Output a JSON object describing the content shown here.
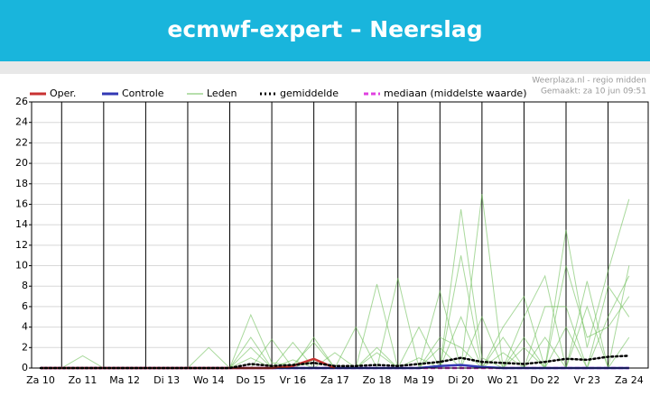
{
  "chart_data": {
    "type": "line",
    "title": "ecmwf-expert – Neerslag",
    "source": "Weerplaza.nl - regio midden",
    "note": "Gemaakt: za 10 jun 09:51",
    "categories": [
      "Za 10",
      null,
      "Zo 11",
      null,
      "Ma 12",
      null,
      "Di 13",
      null,
      "Wo 14",
      null,
      "Do 15",
      null,
      "Vr 16",
      null,
      "Za 17",
      null,
      "Zo 18",
      null,
      "Ma 19",
      null,
      "Di 20",
      null,
      "Wo 21",
      null,
      "Do 22",
      null,
      "Vr 23",
      null,
      "Za 24"
    ],
    "ylim": [
      0,
      26
    ],
    "yticks": [
      0,
      2,
      4,
      6,
      8,
      10,
      12,
      14,
      16,
      18,
      20,
      22,
      24,
      26
    ],
    "grid": true,
    "series": [
      {
        "name": "Oper.",
        "color": "#c83232",
        "values": [
          0,
          0,
          0,
          0,
          0,
          0,
          0,
          0,
          0,
          0,
          0,
          0,
          0.2,
          0.9,
          0,
          null,
          null,
          null,
          null,
          null,
          null,
          null,
          null,
          null,
          null,
          null,
          null,
          null,
          null
        ]
      },
      {
        "name": "Controle",
        "color": "#3238b4",
        "values": [
          0,
          0,
          0,
          0,
          0,
          0,
          0,
          0,
          0,
          0,
          0,
          0,
          0,
          0,
          0,
          0,
          0,
          0,
          0,
          0.2,
          0.3,
          0.1,
          0,
          0,
          0,
          0,
          0,
          0,
          0
        ]
      },
      {
        "name": "Leden",
        "color": "#6fbf5a",
        "members": [
          [
            0,
            0,
            0,
            0,
            0,
            0,
            0,
            0,
            0,
            0,
            5.2,
            0.5,
            0.3,
            2.5,
            0,
            0,
            8.2,
            0,
            0,
            0,
            15.5,
            1,
            0,
            3,
            0,
            13.5,
            2,
            9.5,
            16.5
          ],
          [
            0,
            0,
            1.2,
            0,
            0,
            0,
            0,
            0,
            0,
            0,
            3,
            0,
            0.8,
            0,
            0,
            0,
            0,
            8.8,
            0,
            2,
            0,
            17,
            0,
            5,
            9,
            0,
            6,
            0,
            10
          ],
          [
            0,
            0,
            0,
            0,
            0,
            0,
            0,
            0,
            2,
            0,
            0,
            2.8,
            0,
            0,
            1.5,
            0,
            0,
            0,
            4,
            0,
            11,
            0,
            1.5,
            0,
            6,
            6,
            0,
            8,
            5
          ],
          [
            0,
            0,
            0,
            0,
            0,
            0,
            0,
            0,
            0,
            0,
            2,
            0,
            0,
            0.8,
            0,
            0,
            2,
            0,
            0,
            7.5,
            0,
            5,
            0,
            2,
            0,
            10,
            3,
            4,
            7
          ],
          [
            0,
            0,
            0,
            0,
            0,
            0,
            0,
            0,
            0,
            0,
            0,
            0,
            2.5,
            0,
            0,
            4,
            0,
            0,
            1,
            0,
            5,
            0,
            3,
            0,
            3,
            0,
            8.5,
            0,
            3
          ],
          [
            0,
            0,
            0,
            0,
            0,
            0,
            0,
            0,
            0,
            0,
            1,
            0,
            0,
            3,
            0,
            0,
            1.5,
            0,
            0,
            3,
            2,
            0,
            4,
            7,
            0,
            4,
            0,
            5,
            9
          ]
        ]
      },
      {
        "name": "gemiddelde",
        "color": "#000000",
        "style": "dotted",
        "values": [
          0,
          0,
          0,
          0,
          0,
          0,
          0,
          0,
          0,
          0,
          0.4,
          0.2,
          0.3,
          0.5,
          0.2,
          0.2,
          0.3,
          0.2,
          0.4,
          0.6,
          1.0,
          0.6,
          0.5,
          0.4,
          0.6,
          0.9,
          0.8,
          1.1,
          1.2
        ]
      },
      {
        "name": "mediaan (middelste waarde)",
        "color": "#e040e0",
        "style": "dashed",
        "values": [
          0,
          0,
          0,
          0,
          0,
          0,
          0,
          0,
          0,
          0,
          0,
          0,
          0,
          0,
          0,
          0,
          0,
          0,
          0,
          0,
          0,
          0,
          0,
          0,
          0,
          0,
          0,
          0,
          0
        ]
      }
    ]
  }
}
